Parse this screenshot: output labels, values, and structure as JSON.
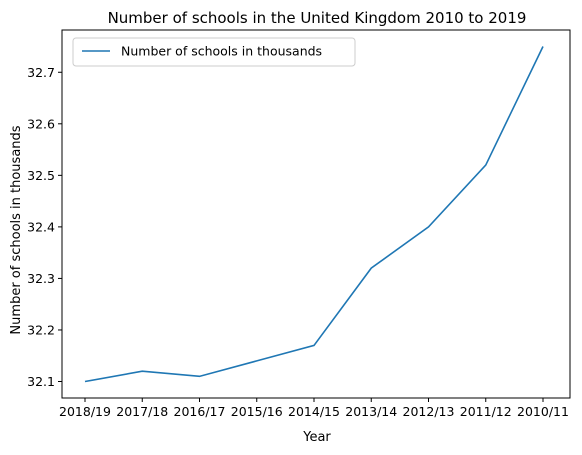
{
  "chart_data": {
    "type": "line",
    "title": "Number of schools in the United Kingdom 2010 to 2019",
    "xlabel": "Year",
    "ylabel": "Number of schools in thousands",
    "categories": [
      "2018/19",
      "2017/18",
      "2016/17",
      "2015/16",
      "2014/15",
      "2013/14",
      "2012/13",
      "2011/12",
      "2010/11"
    ],
    "series": [
      {
        "name": "Number of schools in thousands",
        "values": [
          32.1,
          32.12,
          32.11,
          32.14,
          32.17,
          32.32,
          32.4,
          32.52,
          32.75
        ]
      }
    ],
    "yticks": [
      "32.1",
      "32.2",
      "32.3",
      "32.4",
      "32.5",
      "32.6",
      "32.7"
    ],
    "ylim": [
      32.068,
      32.782
    ],
    "grid": false,
    "legend": "top-left",
    "colors": {
      "series": "#1f77b4",
      "axes": "#000000",
      "legend_border": "#cccccc"
    }
  }
}
